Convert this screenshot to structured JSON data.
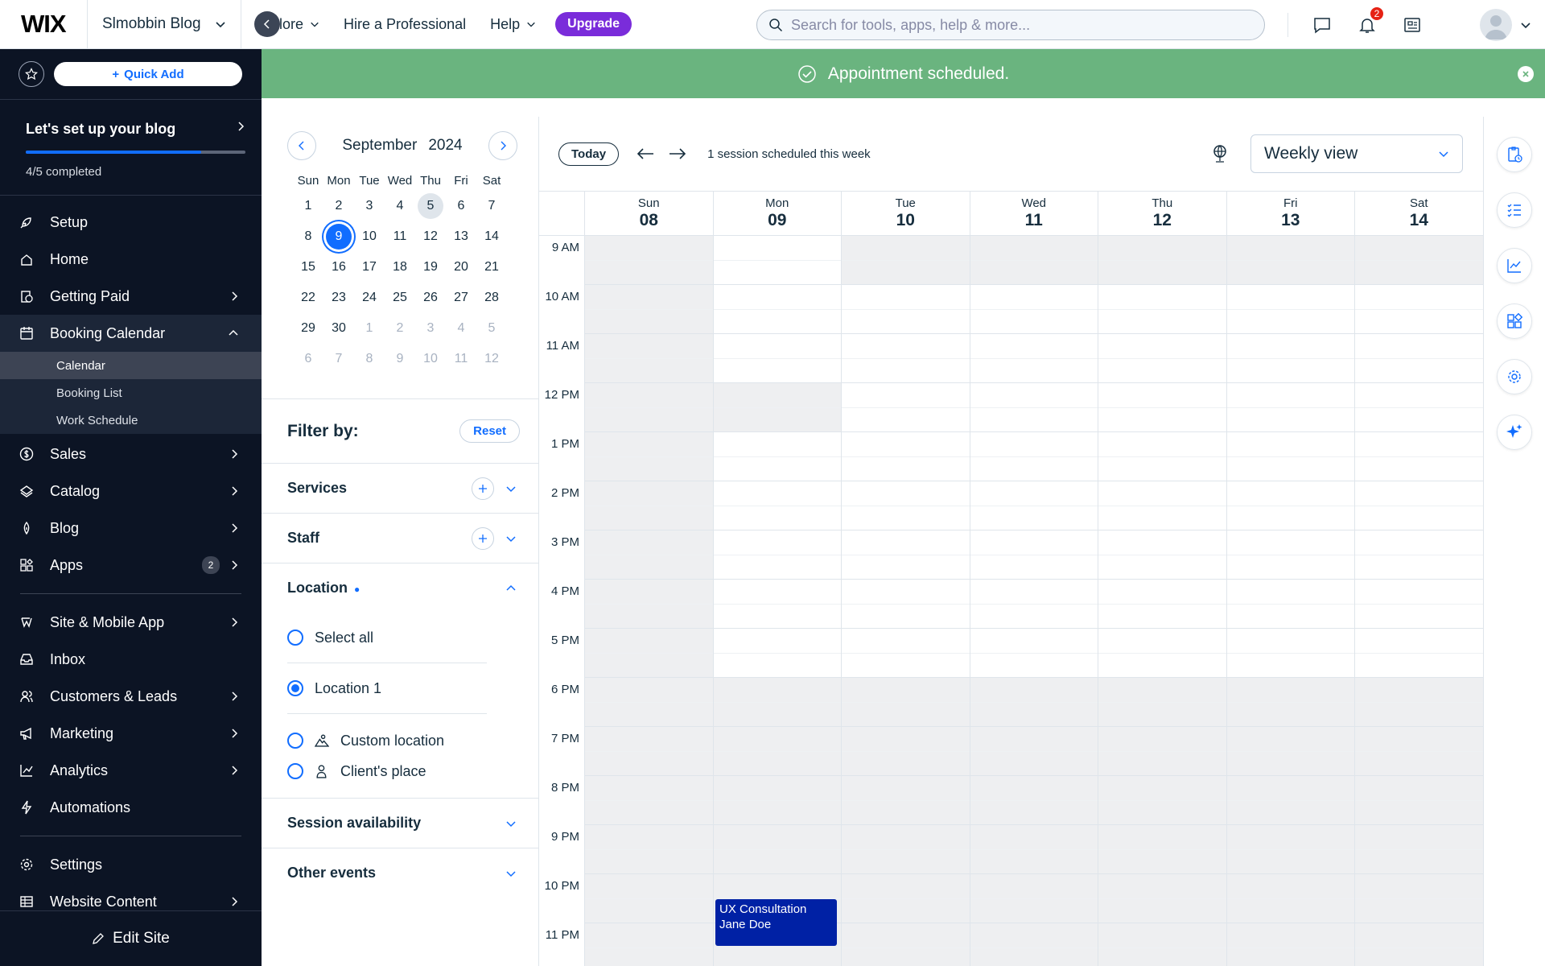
{
  "topbar": {
    "logo": "WIX",
    "site_name": "Slmobbin Blog",
    "nav": [
      "Explore",
      "Hire a Professional",
      "Help"
    ],
    "upgrade": "Upgrade",
    "search_placeholder": "Search for tools, apps, help & more...",
    "notification_count": "2"
  },
  "sidebar": {
    "quick_add": "Quick Add",
    "setup_title": "Let's set up your blog",
    "setup_progress": 0.8,
    "setup_done": "4/5 completed",
    "items_a": [
      {
        "label": "Setup",
        "icon": "rocket-icon",
        "chevron": false
      },
      {
        "label": "Home",
        "icon": "home-icon",
        "chevron": false
      },
      {
        "label": "Getting Paid",
        "icon": "getting-paid-icon",
        "chevron": true
      }
    ],
    "booking": "Booking Calendar",
    "booking_sub": [
      "Calendar",
      "Booking List",
      "Work Schedule"
    ],
    "items_b": [
      {
        "label": "Sales",
        "icon": "dollar-icon",
        "chevron": true
      },
      {
        "label": "Catalog",
        "icon": "catalog-icon",
        "chevron": true
      },
      {
        "label": "Blog",
        "icon": "pen-icon",
        "chevron": true
      },
      {
        "label": "Apps",
        "icon": "apps-icon",
        "chevron": true,
        "badge": "2"
      }
    ],
    "items_c": [
      {
        "label": "Site & Mobile App",
        "icon": "globe-icon",
        "chevron": true
      },
      {
        "label": "Inbox",
        "icon": "inbox-icon",
        "chevron": false
      },
      {
        "label": "Customers & Leads",
        "icon": "people-icon",
        "chevron": true
      },
      {
        "label": "Marketing",
        "icon": "megaphone-icon",
        "chevron": true
      },
      {
        "label": "Analytics",
        "icon": "analytics-icon",
        "chevron": true
      },
      {
        "label": "Automations",
        "icon": "lightning-icon",
        "chevron": false
      }
    ],
    "items_d": [
      {
        "label": "Settings",
        "icon": "gear-icon",
        "chevron": false
      },
      {
        "label": "Website Content",
        "icon": "table-icon",
        "chevron": true
      }
    ],
    "edit_site": "Edit Site"
  },
  "banner": {
    "message": "Appointment scheduled."
  },
  "mini_calendar": {
    "month": "September",
    "year": "2024",
    "weekdays": [
      "Sun",
      "Mon",
      "Tue",
      "Wed",
      "Thu",
      "Fri",
      "Sat"
    ],
    "weeks": [
      [
        "1",
        "2",
        "3",
        "4",
        "5",
        "6",
        "7"
      ],
      [
        "8",
        "9",
        "10",
        "11",
        "12",
        "13",
        "14"
      ],
      [
        "15",
        "16",
        "17",
        "18",
        "19",
        "20",
        "21"
      ],
      [
        "22",
        "23",
        "24",
        "25",
        "26",
        "27",
        "28"
      ],
      [
        "29",
        "30",
        "1",
        "2",
        "3",
        "4",
        "5"
      ],
      [
        "6",
        "7",
        "8",
        "9",
        "10",
        "11",
        "12"
      ]
    ],
    "today": "5",
    "selected": "9"
  },
  "filter": {
    "title": "Filter by:",
    "reset": "Reset",
    "services": "Services",
    "staff": "Staff",
    "location": "Location",
    "location_options": [
      {
        "label": "Select all",
        "checked": false
      },
      {
        "label": "Location 1",
        "checked": true
      },
      {
        "label": "Custom location",
        "checked": false,
        "icon": "landscape-icon"
      },
      {
        "label": "Client's place",
        "checked": false,
        "icon": "person-icon"
      }
    ],
    "session_availability": "Session availability",
    "other_events": "Other events"
  },
  "calendar": {
    "today_btn": "Today",
    "summary": "1 session scheduled this week",
    "view": "Weekly view",
    "days": [
      {
        "wd": "Sun",
        "d": "08"
      },
      {
        "wd": "Mon",
        "d": "09"
      },
      {
        "wd": "Tue",
        "d": "10"
      },
      {
        "wd": "Wed",
        "d": "11"
      },
      {
        "wd": "Thu",
        "d": "12"
      },
      {
        "wd": "Fri",
        "d": "13"
      },
      {
        "wd": "Sat",
        "d": "14"
      }
    ],
    "hours": [
      "9 AM",
      "10 AM",
      "11 AM",
      "12 PM",
      "1 PM",
      "2 PM",
      "3 PM",
      "4 PM",
      "5 PM",
      "6 PM",
      "7 PM",
      "8 PM",
      "9 PM",
      "10 PM",
      "11 PM"
    ],
    "event": {
      "title": "UX Consultation",
      "client": "Jane Doe"
    }
  }
}
